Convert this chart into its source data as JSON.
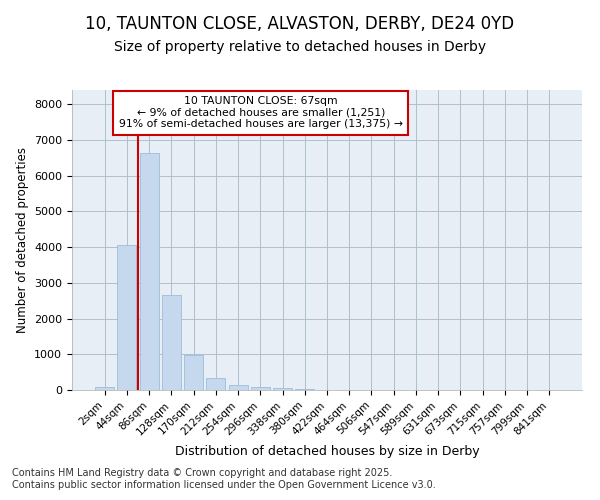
{
  "title": "10, TAUNTON CLOSE, ALVASTON, DERBY, DE24 0YD",
  "subtitle": "Size of property relative to detached houses in Derby",
  "xlabel": "Distribution of detached houses by size in Derby",
  "ylabel": "Number of detached properties",
  "categories": [
    "2sqm",
    "44sqm",
    "86sqm",
    "128sqm",
    "170sqm",
    "212sqm",
    "254sqm",
    "296sqm",
    "338sqm",
    "380sqm",
    "422sqm",
    "464sqm",
    "506sqm",
    "547sqm",
    "589sqm",
    "631sqm",
    "673sqm",
    "715sqm",
    "757sqm",
    "799sqm",
    "841sqm"
  ],
  "bar_heights": [
    75,
    4050,
    6650,
    2660,
    970,
    340,
    140,
    85,
    55,
    30,
    0,
    0,
    0,
    0,
    0,
    0,
    0,
    0,
    0,
    0,
    0
  ],
  "bar_color": "#c5d8ee",
  "bar_edgecolor": "#9bbdd8",
  "ylim": [
    0,
    8400
  ],
  "yticks": [
    0,
    1000,
    2000,
    3000,
    4000,
    5000,
    6000,
    7000,
    8000
  ],
  "vline_x": 1.5,
  "vline_color": "#cc0000",
  "annotation_text": "10 TAUNTON CLOSE: 67sqm\n← 9% of detached houses are smaller (1,251)\n91% of semi-detached houses are larger (13,375) →",
  "annotation_box_color": "#ffffff",
  "annotation_box_edgecolor": "#cc0000",
  "background_color": "#e8eef5",
  "plot_bg_color": "#e8eef5",
  "footer": "Contains HM Land Registry data © Crown copyright and database right 2025.\nContains public sector information licensed under the Open Government Licence v3.0.",
  "title_fontsize": 12,
  "subtitle_fontsize": 10,
  "footer_fontsize": 7
}
